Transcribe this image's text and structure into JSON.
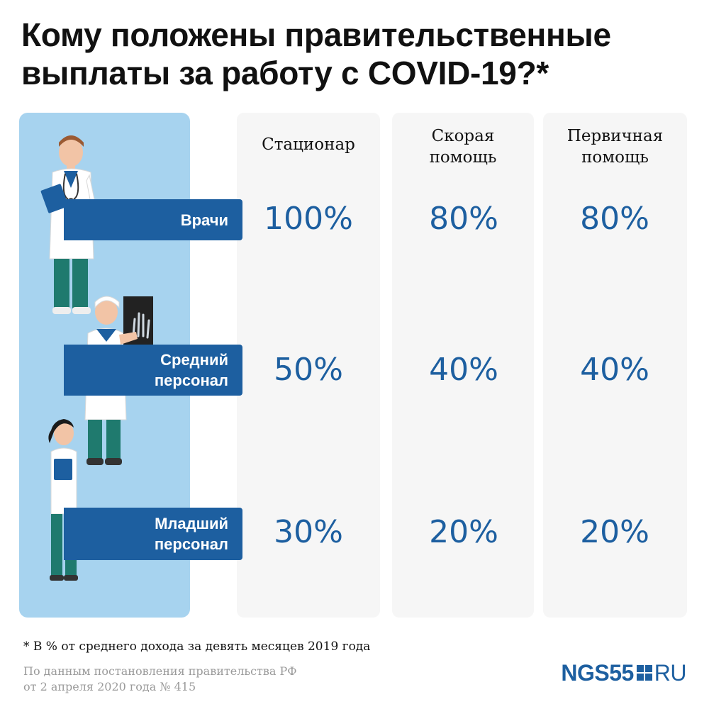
{
  "title": {
    "line1": "Кому положены правительственные",
    "line2": "выплаты за работу с COVID-19?*"
  },
  "columns": [
    {
      "line1": "Стационар",
      "line2": ""
    },
    {
      "line1": "Скорая",
      "line2": "помощь"
    },
    {
      "line1": "Первичная",
      "line2": "помощь"
    }
  ],
  "rows": [
    {
      "label1": "Врачи",
      "label2": "",
      "values": [
        "100%",
        "80%",
        "80%"
      ]
    },
    {
      "label1": "Средний",
      "label2": "персонал",
      "values": [
        "50%",
        "40%",
        "40%"
      ]
    },
    {
      "label1": "Младший",
      "label2": "персонал",
      "values": [
        "30%",
        "20%",
        "20%"
      ]
    }
  ],
  "footnote": "* В % от среднего дохода за девять месяцев 2019 года",
  "source": {
    "line1": "По данным постановления правительства РФ",
    "line2": "от 2 апреля 2020 года № 415"
  },
  "logo": {
    "brand": "NGS55",
    "domain": "RU"
  },
  "icons": [
    "doctor-figure",
    "radiologist-figure",
    "nurse-figure"
  ],
  "colors": {
    "accent": "#1d5fa0",
    "left_panel": "#a7d3ef",
    "column_panel": "#f6f6f6",
    "scrubs": "#1f7a6e"
  }
}
